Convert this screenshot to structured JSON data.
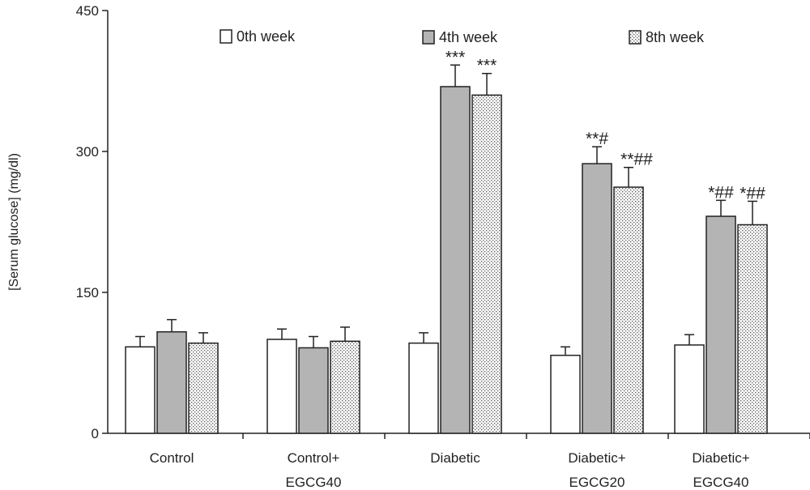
{
  "chart_data": {
    "type": "bar",
    "ylabel": "[Serum glucose] (mg/dl)",
    "xlabel": "",
    "ylim": [
      0,
      450
    ],
    "yticks": [
      0,
      150,
      300,
      450
    ],
    "grid": false,
    "legend_placement": "top",
    "categories": [
      [
        "Control"
      ],
      [
        "Control+",
        "EGCG40"
      ],
      [
        "Diabetic"
      ],
      [
        "Diabetic+",
        "EGCG20"
      ],
      [
        "Diabetic+",
        "EGCG40"
      ]
    ],
    "series": [
      {
        "name": "0th week",
        "pattern": "white",
        "values": [
          92,
          100,
          96,
          83,
          94
        ],
        "errors": [
          11,
          11,
          11,
          9,
          11
        ],
        "annotations": [
          "",
          "",
          "",
          "",
          ""
        ]
      },
      {
        "name": "4th week",
        "pattern": "gray",
        "values": [
          108,
          91,
          369,
          287,
          231
        ],
        "errors": [
          13,
          12,
          23,
          18,
          17
        ],
        "annotations": [
          "",
          "",
          "***",
          "**#",
          "*##"
        ]
      },
      {
        "name": "8th week",
        "pattern": "dotted",
        "values": [
          96,
          98,
          360,
          262,
          222
        ],
        "errors": [
          11,
          15,
          23,
          21,
          25
        ],
        "annotations": [
          "",
          "",
          "***",
          "**##",
          "*##"
        ]
      }
    ],
    "colors": {
      "white": "#ffffff",
      "gray": "#b4b4b4",
      "dot": "#555555",
      "axis": "#222222"
    }
  }
}
